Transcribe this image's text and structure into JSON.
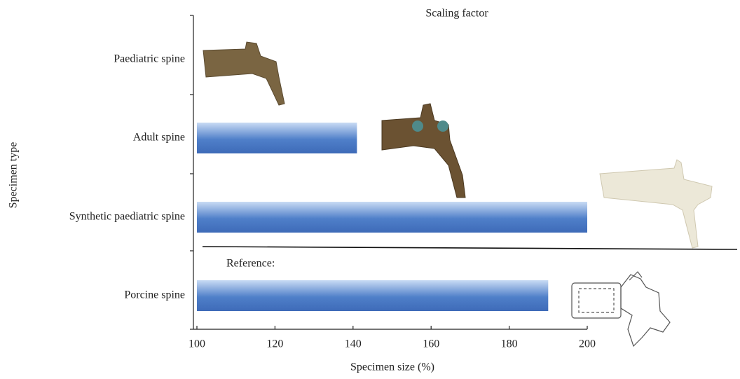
{
  "chart_data": {
    "type": "bar",
    "orientation": "horizontal",
    "title": "Scaling factor",
    "xlabel": "Specimen size (%)",
    "ylabel": "Specimen type",
    "annotation": "Reference:",
    "categories": [
      "Paediatric spine",
      "Adult spine",
      "Synthetic paediatric spine",
      "Porcine spine"
    ],
    "values": [
      100,
      141,
      200,
      190
    ],
    "color": "#4f7fc9",
    "xlim": [
      100,
      200
    ],
    "xticks": [
      100,
      120,
      140,
      160,
      180,
      200
    ]
  }
}
